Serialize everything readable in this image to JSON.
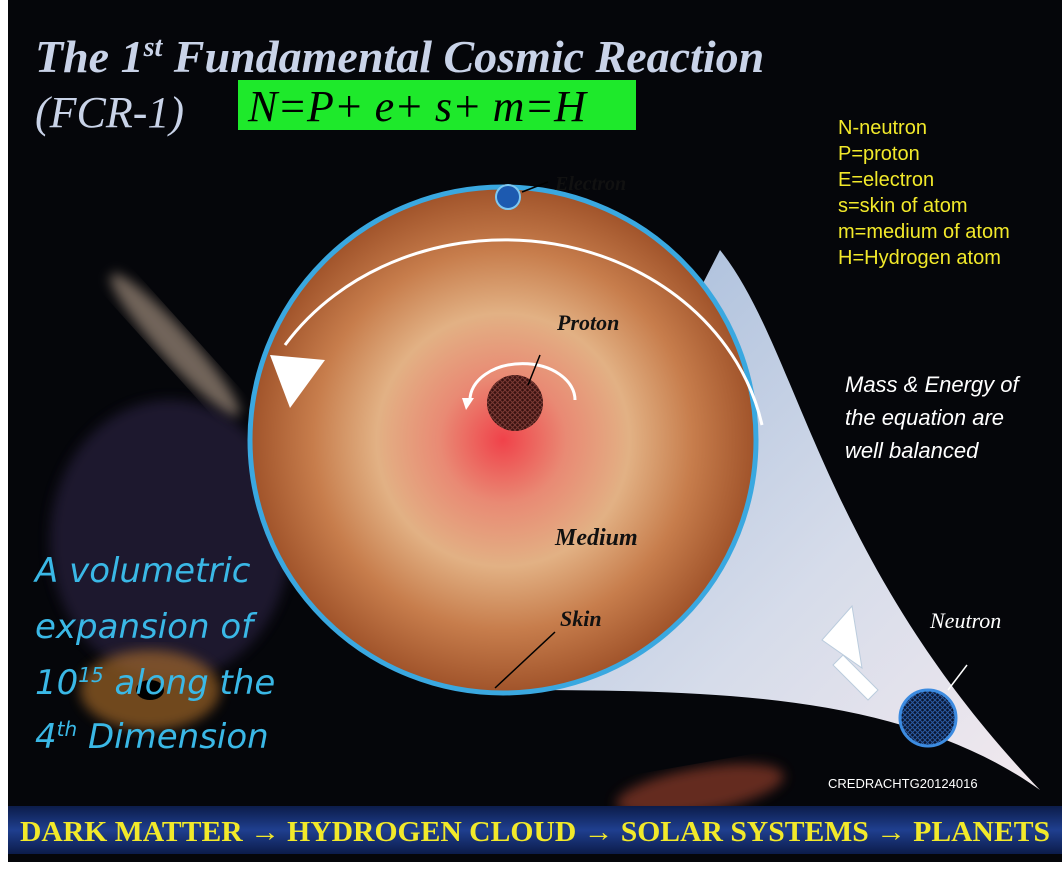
{
  "title": {
    "line1_prefix": "The 1",
    "line1_sup": "st",
    "line1_rest": " Fundamental Cosmic Reaction",
    "line2": "(FCR-1)"
  },
  "equation": "N=P+ e+ s+ m=H",
  "legend": [
    "N-neutron",
    "P=proton",
    "E=electron",
    "s=skin of atom",
    "m=medium of atom",
    "H=Hydrogen atom"
  ],
  "labels": {
    "electron": "Electron",
    "proton": "Proton",
    "medium": "Medium",
    "skin": "Skin",
    "neutron": "Neutron"
  },
  "note": [
    "Mass & Energy of",
    "the equation are",
    "well balanced"
  ],
  "expansion": {
    "line1": "A volumetric",
    "line2": "expansion of",
    "line3_base": "10",
    "line3_sup": "15",
    "line3_rest": " along the",
    "line4_base": "4",
    "line4_sup": "th",
    "line4_rest": " Dimension"
  },
  "credit": "CREDRACHTG20124016",
  "footer": "DARK MATTER → HYDROGEN CLOUD → SOLAR SYSTEMS →  PLANETS"
}
